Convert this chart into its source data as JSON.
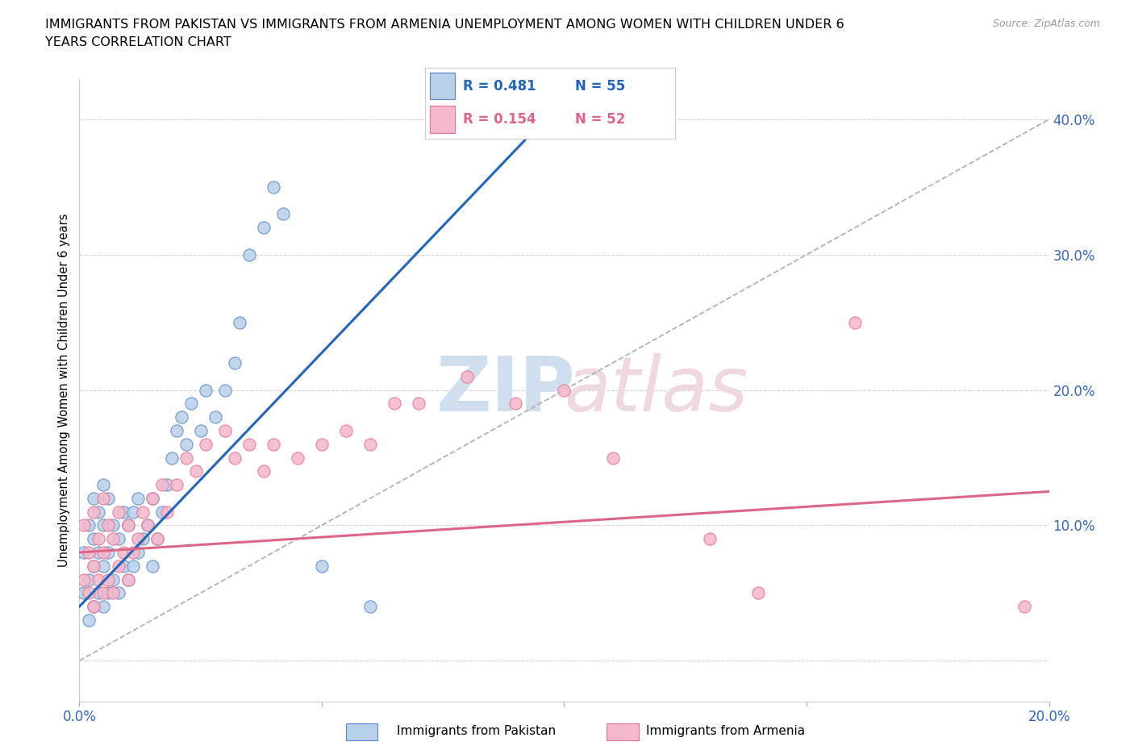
{
  "title_line1": "IMMIGRANTS FROM PAKISTAN VS IMMIGRANTS FROM ARMENIA UNEMPLOYMENT AMONG WOMEN WITH CHILDREN UNDER 6",
  "title_line2": "YEARS CORRELATION CHART",
  "source": "Source: ZipAtlas.com",
  "ylabel": "Unemployment Among Women with Children Under 6 years",
  "x_min": 0.0,
  "x_max": 0.2,
  "y_min": -0.03,
  "y_max": 0.43,
  "pakistan_R": 0.481,
  "pakistan_N": 55,
  "armenia_R": 0.154,
  "armenia_N": 52,
  "pakistan_color": "#b8d0e8",
  "armenia_color": "#f5b8cc",
  "pakistan_edge_color": "#5588cc",
  "armenia_edge_color": "#e87090",
  "pakistan_line_color": "#2266bb",
  "armenia_line_color": "#dd6688",
  "diagonal_color": "#aaaaaa",
  "background_color": "#ffffff",
  "pak_x": [
    0.001,
    0.001,
    0.002,
    0.002,
    0.002,
    0.003,
    0.003,
    0.003,
    0.003,
    0.004,
    0.004,
    0.004,
    0.005,
    0.005,
    0.005,
    0.005,
    0.006,
    0.006,
    0.006,
    0.007,
    0.007,
    0.008,
    0.008,
    0.009,
    0.009,
    0.01,
    0.01,
    0.011,
    0.011,
    0.012,
    0.012,
    0.013,
    0.014,
    0.015,
    0.015,
    0.016,
    0.017,
    0.018,
    0.019,
    0.02,
    0.021,
    0.022,
    0.023,
    0.025,
    0.026,
    0.028,
    0.03,
    0.032,
    0.033,
    0.035,
    0.038,
    0.04,
    0.042,
    0.05,
    0.06
  ],
  "pak_y": [
    0.05,
    0.08,
    0.03,
    0.06,
    0.1,
    0.04,
    0.07,
    0.09,
    0.12,
    0.05,
    0.08,
    0.11,
    0.04,
    0.07,
    0.1,
    0.13,
    0.05,
    0.08,
    0.12,
    0.06,
    0.1,
    0.05,
    0.09,
    0.07,
    0.11,
    0.06,
    0.1,
    0.07,
    0.11,
    0.08,
    0.12,
    0.09,
    0.1,
    0.07,
    0.12,
    0.09,
    0.11,
    0.13,
    0.15,
    0.17,
    0.18,
    0.16,
    0.19,
    0.17,
    0.2,
    0.18,
    0.2,
    0.22,
    0.25,
    0.3,
    0.32,
    0.35,
    0.33,
    0.07,
    0.04
  ],
  "arm_x": [
    0.001,
    0.001,
    0.002,
    0.002,
    0.003,
    0.003,
    0.003,
    0.004,
    0.004,
    0.005,
    0.005,
    0.005,
    0.006,
    0.006,
    0.007,
    0.007,
    0.008,
    0.008,
    0.009,
    0.01,
    0.01,
    0.011,
    0.012,
    0.013,
    0.014,
    0.015,
    0.016,
    0.017,
    0.018,
    0.02,
    0.022,
    0.024,
    0.026,
    0.03,
    0.032,
    0.035,
    0.038,
    0.04,
    0.045,
    0.05,
    0.055,
    0.06,
    0.065,
    0.07,
    0.08,
    0.09,
    0.1,
    0.11,
    0.13,
    0.14,
    0.16,
    0.195
  ],
  "arm_y": [
    0.06,
    0.1,
    0.05,
    0.08,
    0.04,
    0.07,
    0.11,
    0.06,
    0.09,
    0.05,
    0.08,
    0.12,
    0.06,
    0.1,
    0.05,
    0.09,
    0.07,
    0.11,
    0.08,
    0.06,
    0.1,
    0.08,
    0.09,
    0.11,
    0.1,
    0.12,
    0.09,
    0.13,
    0.11,
    0.13,
    0.15,
    0.14,
    0.16,
    0.17,
    0.15,
    0.16,
    0.14,
    0.16,
    0.15,
    0.16,
    0.17,
    0.16,
    0.19,
    0.19,
    0.21,
    0.19,
    0.2,
    0.15,
    0.09,
    0.05,
    0.25,
    0.04
  ],
  "pak_line_x0": 0.0,
  "pak_line_y0": 0.04,
  "pak_line_x1": 0.048,
  "pak_line_y1": 0.22,
  "arm_line_x0": 0.0,
  "arm_line_y0": 0.08,
  "arm_line_x1": 0.2,
  "arm_line_y1": 0.125
}
